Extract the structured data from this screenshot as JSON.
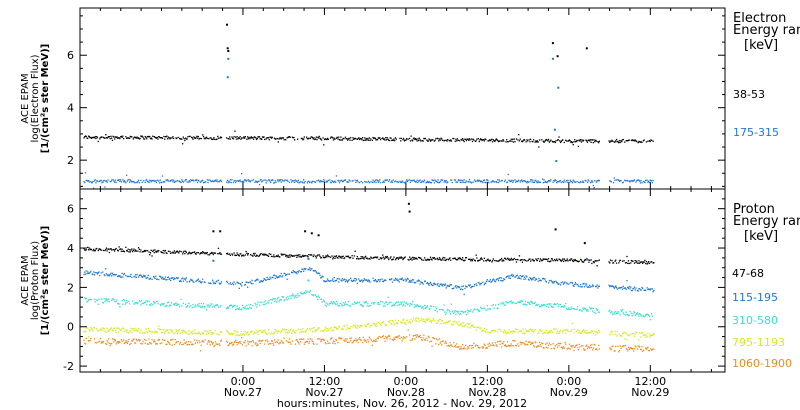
{
  "chart_data": [
    {
      "type": "scatter",
      "ylabel": [
        "ACE EPAM",
        "log(Electron Flux)",
        "[1/(cm²s ster MeV)]"
      ],
      "yticks": [
        2,
        4,
        6
      ],
      "ylim": [
        0.9,
        7.8
      ],
      "legend_header": [
        "Electron",
        "Energy ran"
      ],
      "legend_unit": "[keV]",
      "grid": false,
      "legend_position": "right",
      "series": [
        {
          "name": "38-53",
          "color": "#000000",
          "base": 2.85,
          "noise": 0.06,
          "trend": [
            [
              0,
              0.05
            ],
            [
              36,
              0.0
            ],
            [
              72,
              -0.1
            ]
          ],
          "spikes": [
            [
              21.5,
              7.2
            ],
            [
              21.6,
              6.3
            ],
            [
              21.7,
              6.2
            ],
            [
              69.5,
              6.5
            ],
            [
              70.2,
              6.0
            ],
            [
              74.5,
              6.3
            ]
          ]
        },
        {
          "name": "175-315",
          "color": "#1e78d2",
          "base": 1.22,
          "noise": 0.06,
          "trend": [
            [
              0,
              0.0
            ],
            [
              72,
              0.0
            ]
          ],
          "spikes": [
            [
              21.6,
              5.2
            ],
            [
              21.7,
              5.9
            ],
            [
              69.5,
              5.9
            ],
            [
              70.3,
              4.8
            ],
            [
              69.8,
              3.2
            ],
            [
              70.0,
              2.0
            ]
          ]
        }
      ]
    },
    {
      "type": "scatter",
      "ylabel": [
        "ACE EPAM",
        "log(Proton Flux)",
        "[1/(cm²s ster MeV)]"
      ],
      "yticks": [
        -2,
        0,
        2,
        4,
        6
      ],
      "ylim": [
        -2.3,
        7.0
      ],
      "legend_header": [
        "Proton",
        "Energy ran"
      ],
      "legend_unit": "[keV]",
      "grid": false,
      "legend_position": "right",
      "series": [
        {
          "name": "47-68",
          "color": "#000000",
          "base": 3.7,
          "noise": 0.08,
          "trend": [
            [
              0,
              0.3
            ],
            [
              24,
              0.0
            ],
            [
              48,
              -0.2
            ],
            [
              72,
              -0.3
            ],
            [
              84,
              -0.4
            ]
          ],
          "spikes": [
            [
              19.5,
              4.9
            ],
            [
              20.5,
              4.9
            ],
            [
              33,
              4.9
            ],
            [
              34,
              4.8
            ],
            [
              35,
              4.7
            ],
            [
              48.3,
              6.3
            ],
            [
              48.4,
              5.9
            ],
            [
              69.9,
              5.0
            ],
            [
              74.2,
              4.3
            ]
          ]
        },
        {
          "name": "115-195",
          "color": "#1e78d2",
          "base": 2.5,
          "noise": 0.1,
          "trend": [
            [
              0,
              0.3
            ],
            [
              12,
              0.0
            ],
            [
              24,
              -0.3
            ],
            [
              34,
              0.5
            ],
            [
              36,
              -0.1
            ],
            [
              48,
              -0.1
            ],
            [
              56,
              -0.5
            ],
            [
              64,
              0.1
            ],
            [
              72,
              -0.3
            ],
            [
              84,
              -0.6
            ]
          ],
          "spikes": [
            [
              19.5,
              3.4
            ],
            [
              33.5,
              3.5
            ],
            [
              74.5,
              3.5
            ]
          ]
        },
        {
          "name": "310-580",
          "color": "#35e0d2",
          "base": 1.2,
          "noise": 0.12,
          "trend": [
            [
              0,
              0.2
            ],
            [
              24,
              -0.2
            ],
            [
              34,
              0.6
            ],
            [
              36,
              0.0
            ],
            [
              48,
              0.0
            ],
            [
              56,
              -0.5
            ],
            [
              64,
              0.1
            ],
            [
              72,
              -0.2
            ],
            [
              84,
              -0.6
            ]
          ],
          "spikes": [
            [
              33.5,
              2.4
            ]
          ]
        },
        {
          "name": "795-1193",
          "color": "#d6ea1e",
          "base": 0.0,
          "noise": 0.12,
          "trend": [
            [
              0,
              -0.1
            ],
            [
              24,
              -0.3
            ],
            [
              36,
              -0.1
            ],
            [
              50,
              0.4
            ],
            [
              56,
              0.2
            ],
            [
              60,
              -0.2
            ],
            [
              72,
              -0.2
            ],
            [
              84,
              -0.4
            ]
          ],
          "spikes": []
        },
        {
          "name": "1060-1900",
          "color": "#f08a1e",
          "base": -0.6,
          "noise": 0.15,
          "trend": [
            [
              0,
              -0.1
            ],
            [
              24,
              -0.2
            ],
            [
              36,
              -0.1
            ],
            [
              50,
              0.1
            ],
            [
              56,
              -0.4
            ],
            [
              64,
              -0.2
            ],
            [
              72,
              -0.4
            ],
            [
              84,
              -0.5
            ]
          ],
          "spikes": []
        }
      ]
    }
  ],
  "x_axis": {
    "range_hours": [
      0,
      95
    ],
    "gaps_hours": [
      [
        20.8,
        21.4
      ],
      [
        76.5,
        77.8
      ]
    ],
    "end_hours": 84.5,
    "ticks": [
      {
        "hours": 24,
        "time": "0:00",
        "date": "Nov.27"
      },
      {
        "hours": 36,
        "time": "12:00",
        "date": "Nov.27"
      },
      {
        "hours": 48,
        "time": "0:00",
        "date": "Nov.28"
      },
      {
        "hours": 60,
        "time": "12:00",
        "date": "Nov.28"
      },
      {
        "hours": 72,
        "time": "0:00",
        "date": "Nov.29"
      },
      {
        "hours": 84,
        "time": "12:00",
        "date": "Nov.29"
      }
    ],
    "minor_ticks_hours": [
      3,
      6,
      9,
      12,
      15,
      18,
      21,
      27,
      30,
      33,
      39,
      42,
      45,
      51,
      54,
      57,
      63,
      66,
      69,
      75,
      78,
      81,
      87,
      90,
      93
    ],
    "label": "hours:minutes, Nov. 26, 2012 - Nov. 29, 2012"
  }
}
